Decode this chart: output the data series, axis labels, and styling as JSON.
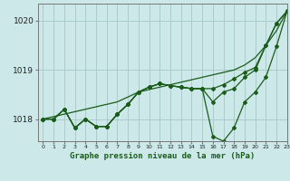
{
  "title": "Graphe pression niveau de la mer (hPa)",
  "bg_color": "#cce8e8",
  "grid_color": "#aacccc",
  "line_color": "#1a5c1a",
  "xlim": [
    -0.5,
    23
  ],
  "ylim": [
    1017.55,
    1020.35
  ],
  "yticks": [
    1018,
    1019,
    1020
  ],
  "xticks": [
    0,
    1,
    2,
    3,
    4,
    5,
    6,
    7,
    8,
    9,
    10,
    11,
    12,
    13,
    14,
    15,
    16,
    17,
    18,
    19,
    20,
    21,
    22,
    23
  ],
  "series": {
    "s_straight": [
      1018.0,
      1018.05,
      1018.1,
      1018.15,
      1018.2,
      1018.25,
      1018.3,
      1018.35,
      1018.45,
      1018.55,
      1018.6,
      1018.65,
      1018.7,
      1018.75,
      1018.8,
      1018.85,
      1018.9,
      1018.95,
      1019.0,
      1019.1,
      1019.25,
      1019.5,
      1019.8,
      1020.2
    ],
    "s_main": [
      1018.0,
      1018.0,
      1018.2,
      1017.82,
      1018.0,
      1017.85,
      1017.85,
      1018.1,
      1018.3,
      1018.55,
      1018.65,
      1018.72,
      1018.68,
      1018.65,
      1018.62,
      1018.62,
      1018.62,
      1018.7,
      1018.82,
      1018.95,
      1019.05,
      1019.5,
      1019.95,
      1020.2
    ],
    "s_dip": [
      1018.0,
      1018.0,
      1018.2,
      1017.82,
      1018.0,
      1017.85,
      1017.85,
      1018.1,
      1018.3,
      1018.55,
      1018.65,
      1018.72,
      1018.68,
      1018.65,
      1018.62,
      1018.62,
      1017.65,
      1017.55,
      1017.82,
      1018.35,
      1018.55,
      1018.85,
      1019.48,
      1020.2
    ],
    "s_mid": [
      1018.0,
      1018.0,
      1018.2,
      1017.82,
      1018.0,
      1017.85,
      1017.85,
      1018.1,
      1018.3,
      1018.55,
      1018.65,
      1018.72,
      1018.68,
      1018.65,
      1018.62,
      1018.62,
      1018.35,
      1018.55,
      1018.62,
      1018.85,
      1019.0,
      1019.5,
      1019.95,
      1020.2
    ]
  }
}
